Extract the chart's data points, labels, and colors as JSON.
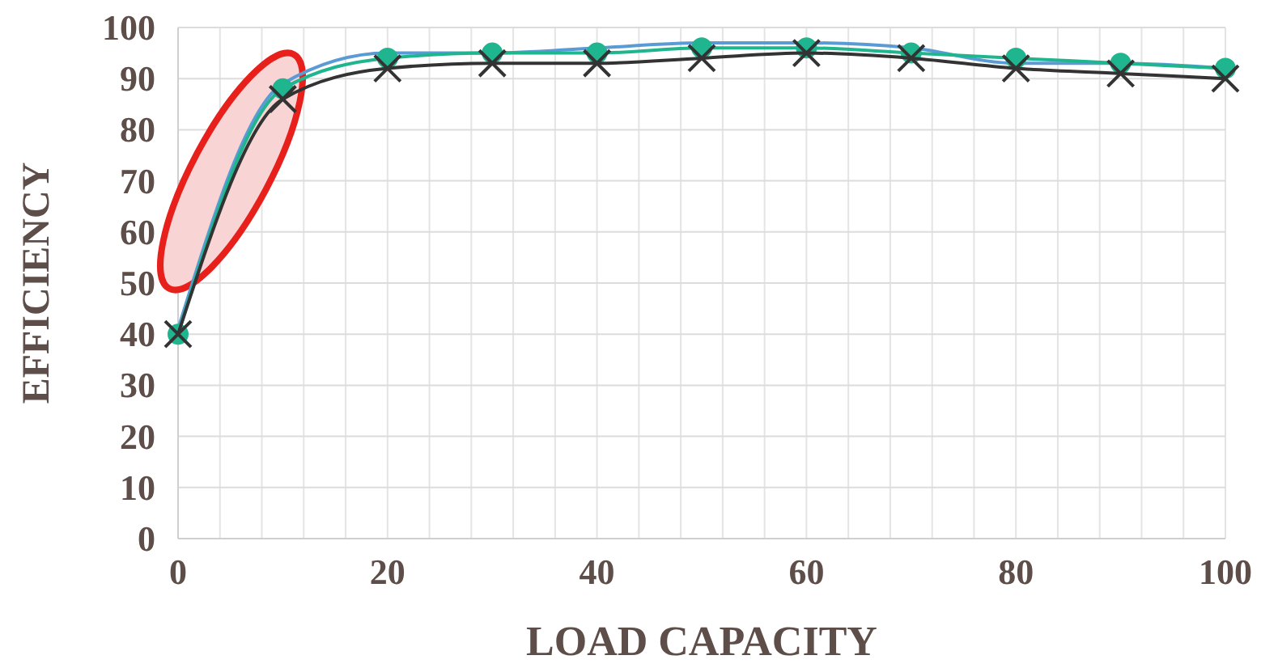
{
  "chart_data": {
    "type": "line",
    "xlabel": "LOAD CAPACITY",
    "ylabel": "EFFICIENCY",
    "x": [
      0,
      10,
      20,
      30,
      40,
      50,
      60,
      70,
      80,
      90,
      100
    ],
    "series": [
      {
        "color": "#5b9bd5",
        "marker": "none",
        "values": [
          41,
          89,
          95,
          95,
          96,
          97,
          97,
          96,
          93,
          93,
          92
        ]
      },
      {
        "color": "#1fb58f",
        "marker": "circle",
        "values": [
          40,
          88,
          94,
          95,
          95,
          96,
          96,
          95,
          94,
          93,
          92
        ]
      },
      {
        "color": "#333333",
        "marker": "cross",
        "values": [
          40,
          86,
          92,
          93,
          93,
          94,
          95,
          94,
          92,
          91,
          90
        ]
      }
    ],
    "xlim": [
      0,
      100
    ],
    "xticks": [
      0,
      {
        "value": 4,
        "label": null
      },
      {
        "value": 8,
        "label": null
      },
      {
        "value": 12,
        "label": null
      },
      {
        "value": 16,
        "label": null
      },
      20,
      {
        "value": 24,
        "label": null
      },
      {
        "value": 28,
        "label": null
      },
      {
        "value": 32,
        "label": null
      },
      {
        "value": 36,
        "label": null
      },
      40,
      {
        "value": 44,
        "label": null
      },
      {
        "value": 48,
        "label": null
      },
      {
        "value": 52,
        "label": null
      },
      {
        "value": 56,
        "label": null
      },
      60,
      {
        "value": 64,
        "label": null
      },
      {
        "value": 68,
        "label": null
      },
      {
        "value": 72,
        "label": null
      },
      {
        "value": 76,
        "label": null
      },
      80,
      {
        "value": 84,
        "label": null
      },
      {
        "value": 88,
        "label": null
      },
      {
        "value": 92,
        "label": null
      },
      {
        "value": 96,
        "label": null
      },
      100
    ],
    "ylim": [
      0,
      100
    ],
    "yticks": [
      0,
      10,
      20,
      30,
      40,
      50,
      60,
      70,
      80,
      90,
      100
    ],
    "grid": true
  }
}
